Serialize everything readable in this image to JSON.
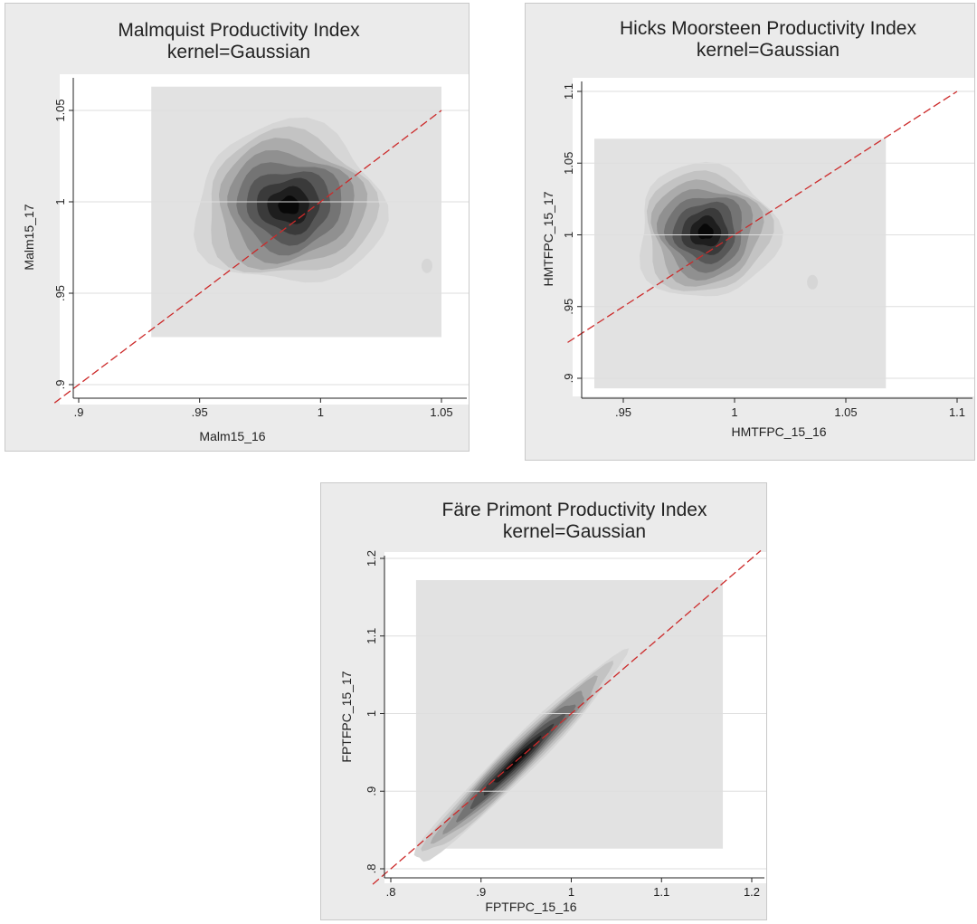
{
  "chart_data": [
    {
      "type": "heatmap",
      "title": "Malmquist Productivity Index",
      "subtitle": "kernel=Gaussian",
      "xlabel": "Malm15_16",
      "ylabel": "Malm15_17",
      "xlim": [
        0.9,
        1.05
      ],
      "ylim": [
        0.9,
        1.05
      ],
      "xticks": [
        ".9",
        ".95",
        "1",
        "1.05"
      ],
      "yticks": [
        ".9",
        ".95",
        "1",
        "1.05"
      ],
      "grid": true,
      "reference_line": "45-degree, red dashed",
      "density": {
        "center": [
          0.987,
          0.998
        ],
        "sd": [
          0.015,
          0.017
        ],
        "correlation": 0.0,
        "domain_x": [
          0.93,
          1.05
        ],
        "domain_y": [
          0.926,
          1.063
        ],
        "extra_mode": [
          1.044,
          0.965
        ]
      }
    },
    {
      "type": "heatmap",
      "title": "Hicks Moorsteen Productivity Index",
      "subtitle": "kernel=Gaussian",
      "xlabel": "HMTFPC_15_16",
      "ylabel": "HMTFPC_15_17",
      "xlim": [
        0.935,
        1.1
      ],
      "ylim": [
        0.89,
        1.11
      ],
      "xticks": [
        ".95",
        "1",
        "1.05",
        "1.1"
      ],
      "yticks": [
        ".9",
        ".95",
        "1",
        "1.05",
        "1.1"
      ],
      "grid": true,
      "reference_line": "45-degree, red dashed",
      "density": {
        "center": [
          0.987,
          1.002
        ],
        "sd": [
          0.012,
          0.018
        ],
        "correlation": 0.0,
        "domain_x": [
          0.937,
          1.068
        ],
        "domain_y": [
          0.893,
          1.067
        ],
        "extra_mode": [
          1.035,
          0.967
        ]
      }
    },
    {
      "type": "heatmap",
      "title": "Färe Primont Productivity Index",
      "subtitle": "kernel=Gaussian",
      "xlabel": "FPTFPC_15_16",
      "ylabel": "FPTFPC_15_17",
      "xlim": [
        0.79,
        1.21
      ],
      "ylim": [
        0.79,
        1.21
      ],
      "xticks": [
        ".8",
        ".9",
        "1",
        "1.1",
        "1.2"
      ],
      "yticks": [
        ".8",
        ".9",
        "1",
        "1.1",
        "1.2"
      ],
      "grid": true,
      "reference_line": "45-degree, red dashed",
      "density": {
        "center": [
          0.94,
          0.94
        ],
        "sd": [
          0.045,
          0.045
        ],
        "correlation": 0.965,
        "domain_x": [
          0.828,
          1.168
        ],
        "domain_y": [
          0.826,
          1.172
        ],
        "extra_mode": null
      }
    }
  ],
  "colors": {
    "panel_background": "#ebebeb",
    "plot_background": "#ffffff",
    "density_background": "#e2e2e2",
    "reference_line": "#cc2a2a",
    "density_levels": [
      "#d6d6d6",
      "#c3c3c3",
      "#ababab",
      "#909090",
      "#747474",
      "#575757",
      "#3a3a3a",
      "#1e1e1e",
      "#080808"
    ]
  }
}
